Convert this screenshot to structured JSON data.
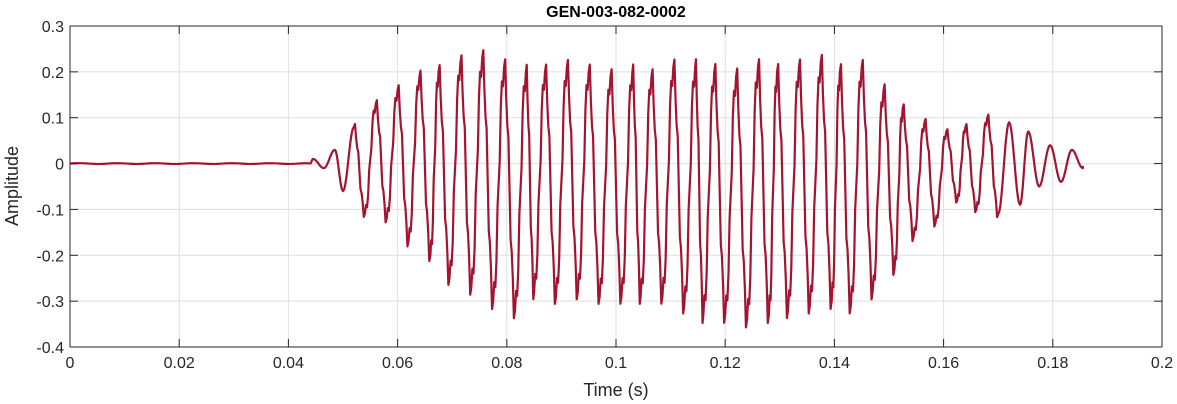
{
  "chart_data": {
    "type": "line",
    "title": "GEN-003-082-0002",
    "xlabel": "Time (s)",
    "ylabel": "Amplitude",
    "xlim": [
      0,
      0.2
    ],
    "ylim": [
      -0.4,
      0.3
    ],
    "grid": true,
    "x_ticks": [
      "0",
      "0.02",
      "0.04",
      "0.06",
      "0.08",
      "0.1",
      "0.12",
      "0.14",
      "0.16",
      "0.18",
      "0.2"
    ],
    "y_ticks": [
      "0.3",
      "0.2",
      "0.1",
      "0",
      "-0.1",
      "-0.2",
      "-0.3",
      "-0.4"
    ],
    "x_tick_values": [
      0,
      0.02,
      0.04,
      0.06,
      0.08,
      0.1,
      0.12,
      0.14,
      0.16,
      0.18,
      0.2
    ],
    "y_tick_values": [
      0.3,
      0.2,
      0.1,
      0,
      -0.1,
      -0.2,
      -0.3,
      -0.4
    ],
    "series": [
      {
        "color": "#a2142f",
        "x_range": [
          0,
          0.1855
        ],
        "signal_onset": 0.044,
        "upper_envelope_peaks": [
          [
            0.0445,
            0.01
          ],
          [
            0.0485,
            0.03
          ],
          [
            0.052,
            0.08
          ],
          [
            0.056,
            0.13
          ],
          [
            0.06,
            0.16
          ],
          [
            0.064,
            0.19
          ],
          [
            0.0675,
            0.2
          ],
          [
            0.0715,
            0.22
          ],
          [
            0.0755,
            0.23
          ],
          [
            0.0795,
            0.21
          ],
          [
            0.0835,
            0.2
          ],
          [
            0.087,
            0.2
          ],
          [
            0.091,
            0.21
          ],
          [
            0.095,
            0.2
          ],
          [
            0.099,
            0.19
          ],
          [
            0.103,
            0.2
          ],
          [
            0.1065,
            0.19
          ],
          [
            0.1105,
            0.21
          ],
          [
            0.1145,
            0.21
          ],
          [
            0.118,
            0.2
          ],
          [
            0.122,
            0.19
          ],
          [
            0.126,
            0.21
          ],
          [
            0.1295,
            0.2
          ],
          [
            0.1335,
            0.21
          ],
          [
            0.1375,
            0.22
          ],
          [
            0.141,
            0.2
          ],
          [
            0.145,
            0.21
          ],
          [
            0.149,
            0.16
          ],
          [
            0.1525,
            0.12
          ],
          [
            0.1565,
            0.09
          ],
          [
            0.1605,
            0.07
          ],
          [
            0.164,
            0.08
          ],
          [
            0.168,
            0.1
          ],
          [
            0.172,
            0.09
          ],
          [
            0.1755,
            0.07
          ],
          [
            0.1795,
            0.04
          ],
          [
            0.1835,
            0.03
          ]
        ],
        "lower_envelope_troughs": [
          [
            0.0465,
            -0.01
          ],
          [
            0.05,
            -0.06
          ],
          [
            0.054,
            -0.11
          ],
          [
            0.058,
            -0.12
          ],
          [
            0.062,
            -0.17
          ],
          [
            0.066,
            -0.2
          ],
          [
            0.0695,
            -0.25
          ],
          [
            0.0735,
            -0.27
          ],
          [
            0.0775,
            -0.3
          ],
          [
            0.0815,
            -0.32
          ],
          [
            0.085,
            -0.28
          ],
          [
            0.089,
            -0.29
          ],
          [
            0.093,
            -0.28
          ],
          [
            0.097,
            -0.29
          ],
          [
            0.101,
            -0.29
          ],
          [
            0.1045,
            -0.29
          ],
          [
            0.1085,
            -0.29
          ],
          [
            0.1125,
            -0.31
          ],
          [
            0.116,
            -0.33
          ],
          [
            0.12,
            -0.33
          ],
          [
            0.124,
            -0.34
          ],
          [
            0.128,
            -0.33
          ],
          [
            0.1315,
            -0.32
          ],
          [
            0.1355,
            -0.31
          ],
          [
            0.1395,
            -0.3
          ],
          [
            0.143,
            -0.31
          ],
          [
            0.147,
            -0.28
          ],
          [
            0.151,
            -0.23
          ],
          [
            0.1545,
            -0.16
          ],
          [
            0.1585,
            -0.13
          ],
          [
            0.1625,
            -0.08
          ],
          [
            0.166,
            -0.1
          ],
          [
            0.17,
            -0.11
          ],
          [
            0.174,
            -0.09
          ],
          [
            0.1775,
            -0.05
          ],
          [
            0.1815,
            -0.04
          ],
          [
            0.1855,
            -0.01
          ]
        ]
      }
    ]
  }
}
